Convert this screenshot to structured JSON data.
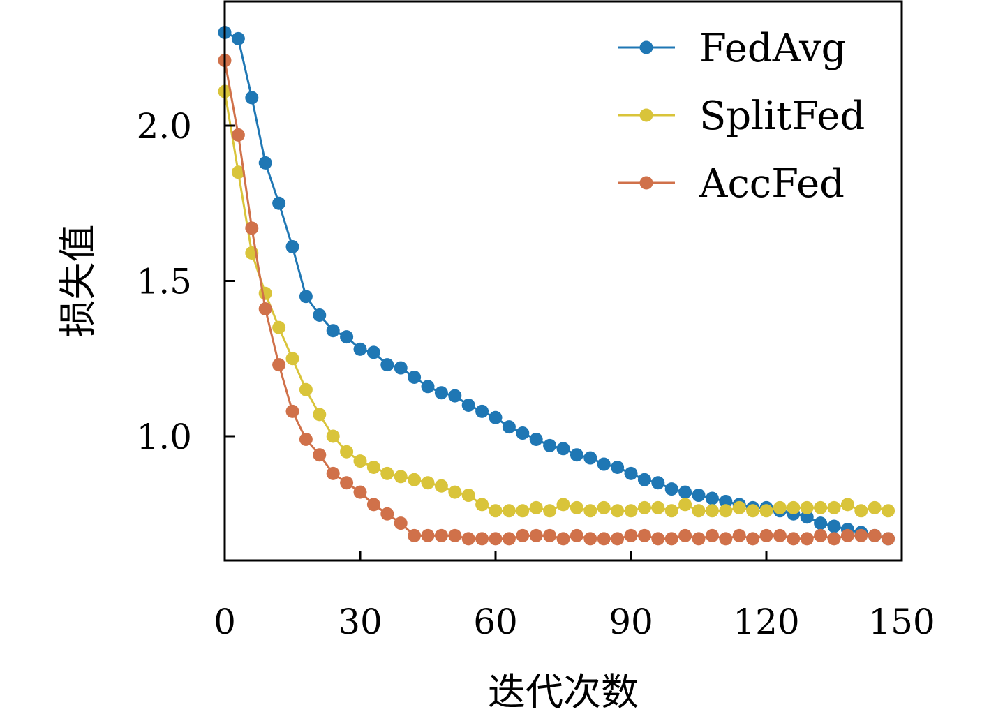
{
  "chart_data": {
    "type": "line",
    "xlabel": "迭代次数",
    "ylabel": "损失值",
    "xlim": [
      0,
      150
    ],
    "ylim": [
      0.6,
      2.4
    ],
    "xticks": [
      0,
      30,
      60,
      90,
      120,
      150
    ],
    "xtick_labels": [
      "0",
      "30",
      "60",
      "90",
      "120",
      "150"
    ],
    "yticks": [
      1.0,
      1.5,
      2.0
    ],
    "ytick_labels": [
      "1.0",
      "1.5",
      "2.0"
    ],
    "grid": false,
    "legend_position": "top-right",
    "x": [
      0,
      3,
      6,
      9,
      12,
      15,
      18,
      21,
      24,
      27,
      30,
      33,
      36,
      39,
      42,
      45,
      48,
      51,
      54,
      57,
      60,
      63,
      66,
      69,
      72,
      75,
      78,
      81,
      84,
      87,
      90,
      93,
      96,
      99,
      102,
      105,
      108,
      111,
      114,
      117,
      120,
      123,
      126,
      129,
      132,
      135,
      138,
      141,
      144,
      147
    ],
    "series": [
      {
        "name": "FedAvg",
        "color": "#1f77b4",
        "values": [
          2.3,
          2.28,
          2.09,
          1.88,
          1.75,
          1.61,
          1.45,
          1.39,
          1.34,
          1.32,
          1.28,
          1.27,
          1.23,
          1.22,
          1.19,
          1.16,
          1.14,
          1.13,
          1.1,
          1.08,
          1.06,
          1.03,
          1.01,
          0.99,
          0.97,
          0.96,
          0.94,
          0.93,
          0.91,
          0.9,
          0.88,
          0.86,
          0.85,
          0.83,
          0.82,
          0.81,
          0.8,
          0.79,
          0.78,
          0.77,
          0.77,
          0.76,
          0.75,
          0.74,
          0.72,
          0.71,
          0.7,
          0.69,
          0.68,
          0.67
        ]
      },
      {
        "name": "SplitFed",
        "color": "#d9c43a",
        "values": [
          2.11,
          1.85,
          1.59,
          1.46,
          1.35,
          1.25,
          1.15,
          1.07,
          1.0,
          0.95,
          0.92,
          0.9,
          0.88,
          0.87,
          0.86,
          0.85,
          0.84,
          0.82,
          0.81,
          0.78,
          0.76,
          0.76,
          0.76,
          0.77,
          0.76,
          0.78,
          0.77,
          0.76,
          0.77,
          0.76,
          0.76,
          0.77,
          0.77,
          0.76,
          0.78,
          0.76,
          0.76,
          0.76,
          0.77,
          0.76,
          0.76,
          0.77,
          0.77,
          0.77,
          0.77,
          0.77,
          0.78,
          0.76,
          0.77,
          0.76
        ]
      },
      {
        "name": "AccFed",
        "color": "#d0714a",
        "values": [
          2.21,
          1.97,
          1.67,
          1.41,
          1.23,
          1.08,
          0.99,
          0.94,
          0.88,
          0.85,
          0.82,
          0.78,
          0.75,
          0.72,
          0.68,
          0.68,
          0.68,
          0.68,
          0.67,
          0.67,
          0.67,
          0.67,
          0.68,
          0.68,
          0.68,
          0.67,
          0.68,
          0.67,
          0.67,
          0.67,
          0.68,
          0.68,
          0.67,
          0.67,
          0.68,
          0.67,
          0.68,
          0.67,
          0.68,
          0.67,
          0.68,
          0.68,
          0.67,
          0.67,
          0.68,
          0.67,
          0.68,
          0.68,
          0.68,
          0.67
        ]
      }
    ]
  }
}
